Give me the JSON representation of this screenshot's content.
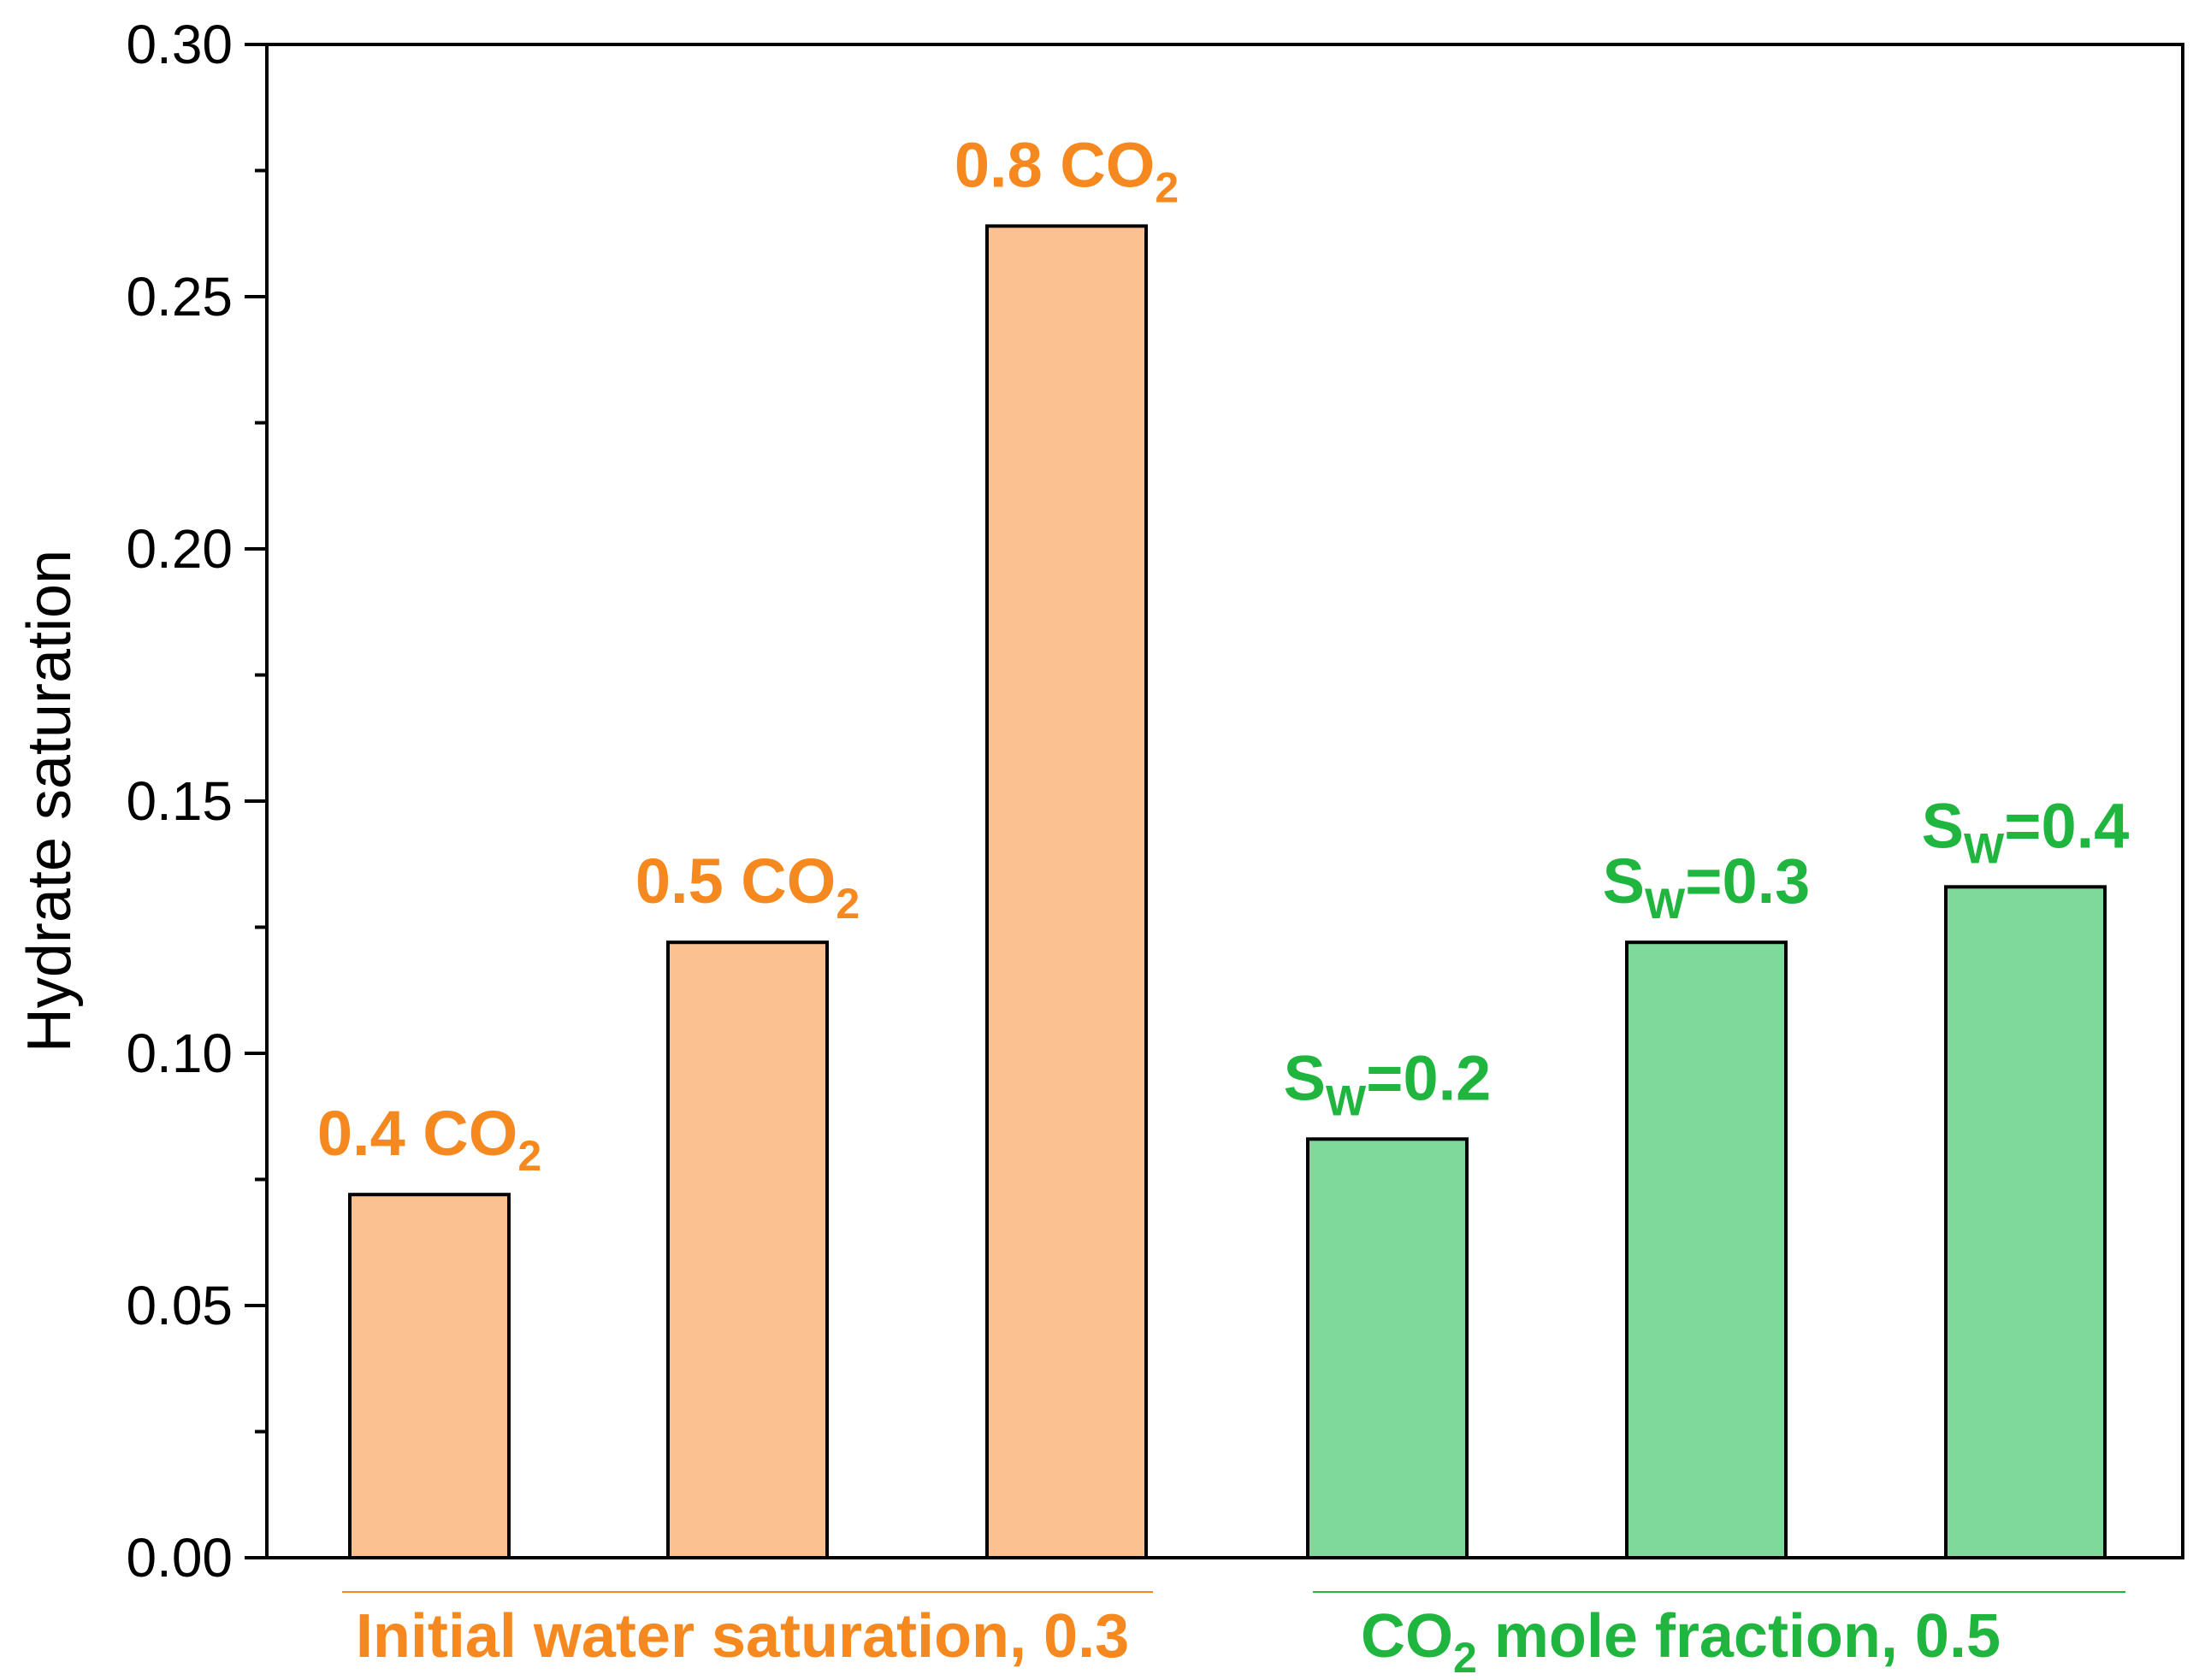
{
  "chart_data": {
    "type": "bar",
    "ylabel": "Hydrate saturation",
    "xlabel": "",
    "ylim": [
      0,
      0.3
    ],
    "yticks": [
      "0.00",
      "0.05",
      "0.10",
      "0.15",
      "0.20",
      "0.25",
      "0.30"
    ],
    "ytick_values": [
      0,
      0.05,
      0.1,
      0.15,
      0.2,
      0.25,
      0.3
    ],
    "bars": [
      {
        "value": 0.072,
        "label_main": "0.4 CO",
        "label_sub": "2",
        "label_tail": "",
        "group": 0
      },
      {
        "value": 0.122,
        "label_main": "0.5 CO",
        "label_sub": "2",
        "label_tail": "",
        "group": 0
      },
      {
        "value": 0.264,
        "label_main": "0.8 CO",
        "label_sub": "2",
        "label_tail": "",
        "group": 0
      },
      {
        "value": 0.083,
        "label_main": "S",
        "label_sub": "W",
        "label_tail": "=0.2",
        "group": 1
      },
      {
        "value": 0.122,
        "label_main": "S",
        "label_sub": "W",
        "label_tail": "=0.3",
        "group": 1
      },
      {
        "value": 0.133,
        "label_main": "S",
        "label_sub": "W",
        "label_tail": "=0.4",
        "group": 1
      }
    ],
    "groups": [
      {
        "label_main": "Initial water saturation, 0.3",
        "label_sub": "",
        "label_tail": "",
        "fill": "#fcc190",
        "text_color": "#f5881f"
      },
      {
        "label_main": "CO",
        "label_sub": "2",
        "label_tail": " mole fraction, 0.5",
        "fill": "#7fd99a",
        "text_color": "#1fb53e"
      }
    ]
  }
}
